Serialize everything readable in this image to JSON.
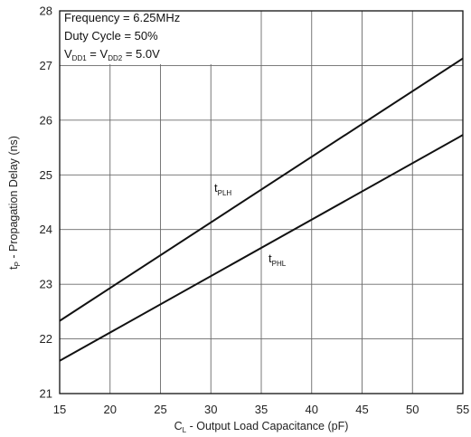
{
  "chart_data": {
    "type": "line",
    "xlabel": "C_L - Output Load Capacitance (pF)",
    "xlabel_main": "C",
    "xlabel_sub": "L",
    "xlabel_rest": " - Output Load Capacitance (pF)",
    "ylabel": "t_P - Propagation Delay (ns)",
    "ylabel_main": "t",
    "ylabel_sub": "P",
    "ylabel_rest": " - Propagation Delay (ns)",
    "xlim": [
      15,
      55
    ],
    "ylim": [
      21,
      28
    ],
    "xticks": [
      "15",
      "20",
      "25",
      "30",
      "35",
      "40",
      "45",
      "50",
      "55"
    ],
    "yticks": [
      "21",
      "22",
      "23",
      "24",
      "25",
      "26",
      "27",
      "28"
    ],
    "grid": true,
    "conditions": {
      "line1": "Frequency = 6.25MHz",
      "line2": "Duty Cycle = 50%",
      "line3_v1": "V",
      "line3_v1_sub": "DD1",
      "line3_eq": " = V",
      "line3_v2_sub": "DD2",
      "line3_rest": " = 5.0V"
    },
    "series": [
      {
        "name": "tPLH",
        "label_main": "t",
        "label_sub": "PLH",
        "x": [
          15,
          55
        ],
        "y": [
          22.33,
          27.13
        ]
      },
      {
        "name": "tPHL",
        "label_main": "t",
        "label_sub": "PHL",
        "x": [
          15,
          55
        ],
        "y": [
          21.6,
          25.73
        ]
      }
    ]
  }
}
